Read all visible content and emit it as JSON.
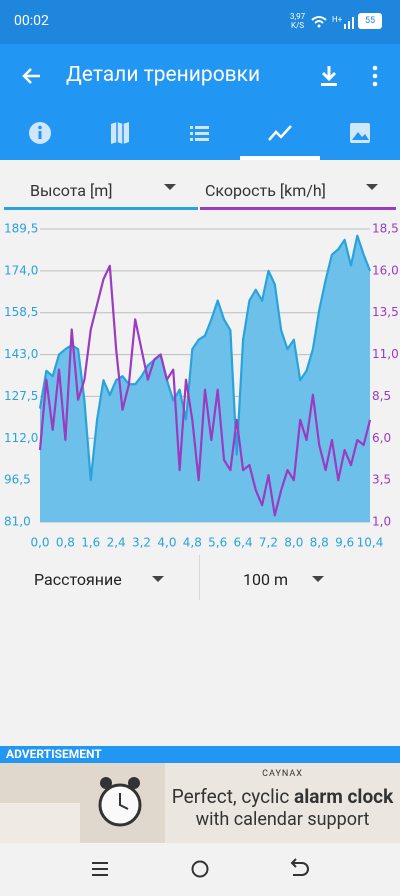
{
  "status_bar": {
    "time": "00:02",
    "net_speed": "3,97",
    "net_unit": "K/S",
    "battery": "55"
  },
  "app_bar": {
    "title": "Детали тренировки"
  },
  "chart_data": {
    "type": "line",
    "x": [
      0,
      0.2,
      0.4,
      0.6,
      0.8,
      1.0,
      1.2,
      1.4,
      1.6,
      1.8,
      2.0,
      2.2,
      2.4,
      2.6,
      2.8,
      3.0,
      3.2,
      3.4,
      3.6,
      3.8,
      4.0,
      4.2,
      4.4,
      4.6,
      4.8,
      5.0,
      5.2,
      5.4,
      5.6,
      5.8,
      6.0,
      6.2,
      6.4,
      6.6,
      6.8,
      7.0,
      7.2,
      7.4,
      7.6,
      7.8,
      8.0,
      8.2,
      8.4,
      8.6,
      8.8,
      9.0,
      9.2,
      9.4,
      9.6,
      9.8,
      10.0,
      10.2,
      10.4
    ],
    "series": [
      {
        "name": "Высота [m]",
        "color": "#29a3dc",
        "area": true,
        "area_color": "#6cc0ea",
        "values": [
          123,
          137,
          135,
          143,
          145,
          146.5,
          145,
          126,
          96.5,
          119,
          133.5,
          128,
          133.5,
          135,
          132,
          132,
          135,
          139,
          141,
          143,
          133.5,
          126,
          130,
          119,
          145,
          148.5,
          150,
          156,
          163,
          156,
          152,
          106,
          148.5,
          163,
          167,
          163,
          174,
          169,
          152,
          145,
          148.5,
          133.5,
          137,
          145,
          159.5,
          170.5,
          180,
          182,
          185.5,
          176,
          187,
          180,
          174
        ]
      },
      {
        "name": "Скорость [km/h]",
        "color": "#9b3bbf",
        "axis": "y2",
        "values": [
          5.3,
          9.5,
          6.5,
          10.1,
          5.9,
          12.5,
          8.3,
          9.5,
          12.5,
          14,
          15.5,
          16.3,
          11.3,
          7.7,
          9.2,
          13.1,
          11.3,
          9.5,
          10.7,
          11,
          9.5,
          10.1,
          4.1,
          9.5,
          7.1,
          3.5,
          8.9,
          5.9,
          8.9,
          4.7,
          4.1,
          7.1,
          4.1,
          4.4,
          2.9,
          2.0,
          3.8,
          1.4,
          2.9,
          4.1,
          3.5,
          7.1,
          5.9,
          8.6,
          5.6,
          4.1,
          5.9,
          3.5,
          5.3,
          4.4,
          5.9,
          5.6,
          7.1
        ]
      }
    ],
    "xlim": [
      0,
      10.4
    ],
    "xticks": [
      {
        "value": 0,
        "label": "0,0"
      },
      {
        "value": 0.8,
        "label": "0,8"
      },
      {
        "value": 1.6,
        "label": "1,6"
      },
      {
        "value": 2.4,
        "label": "2,4"
      },
      {
        "value": 3.2,
        "label": "3,2"
      },
      {
        "value": 4.0,
        "label": "4,0"
      },
      {
        "value": 4.8,
        "label": "4,8"
      },
      {
        "value": 5.6,
        "label": "5,6"
      },
      {
        "value": 6.4,
        "label": "6,4"
      },
      {
        "value": 7.2,
        "label": "7,2"
      },
      {
        "value": 8.0,
        "label": "8,0"
      },
      {
        "value": 8.8,
        "label": "8,8"
      },
      {
        "value": 9.6,
        "label": "9,6"
      },
      {
        "value": 10.4,
        "label": "10,4"
      }
    ],
    "ylim": [
      81,
      189.5
    ],
    "yticks": [
      {
        "value": 81,
        "label": "81,0"
      },
      {
        "value": 96.5,
        "label": "96,5"
      },
      {
        "value": 112,
        "label": "112,0"
      },
      {
        "value": 127.5,
        "label": "127,5"
      },
      {
        "value": 143,
        "label": "143,0"
      },
      {
        "value": 158.5,
        "label": "158,5"
      },
      {
        "value": 174,
        "label": "174,0"
      },
      {
        "value": 189.5,
        "label": "189,5"
      }
    ],
    "y2lim": [
      1,
      18.5
    ],
    "y2ticks": [
      {
        "value": 1,
        "label": "1,0"
      },
      {
        "value": 3.5,
        "label": "3,5"
      },
      {
        "value": 6,
        "label": "6,0"
      },
      {
        "value": 8.5,
        "label": "8,5"
      },
      {
        "value": 11,
        "label": "11,0"
      },
      {
        "value": 13.5,
        "label": "13,5"
      },
      {
        "value": 16,
        "label": "16,0"
      },
      {
        "value": 18.5,
        "label": "18,5"
      }
    ],
    "grid": true
  },
  "controls": {
    "x_axis": "Расстояние",
    "interval": "100 m"
  },
  "ad": {
    "label": "ADVERTISEMENT",
    "brand": "CAYNAX",
    "line1_start": "Perfect, cyclic",
    "line1_bold": "alarm clock",
    "line2": "with calendar support"
  }
}
